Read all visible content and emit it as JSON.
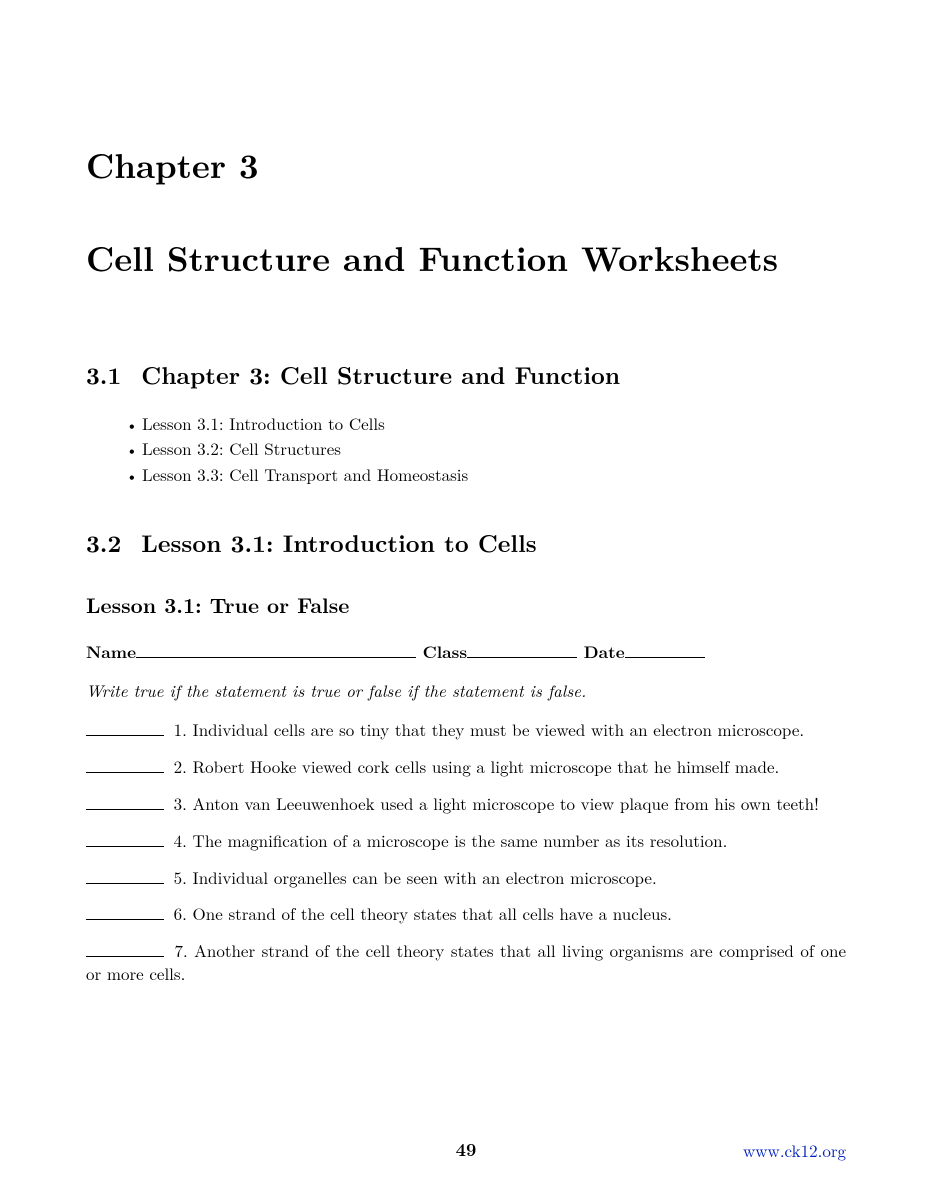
{
  "chapter": {
    "label": "Chapter 3",
    "title": "Cell Structure and Function Worksheets"
  },
  "section1": {
    "number": "3.1",
    "title": "Chapter 3: Cell Structure and Function",
    "lessons": [
      "Lesson 3.1: Introduction to Cells",
      "Lesson 3.2: Cell Structures",
      "Lesson 3.3: Cell Transport and Homeostasis"
    ]
  },
  "section2": {
    "number": "3.2",
    "title": "Lesson 3.1: Introduction to Cells"
  },
  "subsection": {
    "title": "Lesson 3.1: True or False"
  },
  "form": {
    "name_label": "Name",
    "class_label": "Class",
    "date_label": "Date"
  },
  "instructions": "Write true if the statement is true or false if the statement is false.",
  "questions": [
    "1. Individual cells are so tiny that they must be viewed with an electron microscope.",
    "2. Robert Hooke viewed cork cells using a light microscope that he himself made.",
    "3. Anton van Leeuwenhoek used a light microscope to view plaque from his own teeth!",
    "4. The magnification of a microscope is the same number as its resolution.",
    "5. Individual organelles can be seen with an electron microscope.",
    "6. One strand of the cell theory states that all cells have a nucleus.",
    "7. Another strand of the cell theory states that all living organisms are comprised of one or more cells."
  ],
  "footer": {
    "page_number": "49",
    "link": "www.ck12.org"
  },
  "styling": {
    "background_color": "#ffffff",
    "text_color": "#000000",
    "link_color": "#0020c0",
    "body_fontsize": 17,
    "chapter_fontsize": 34,
    "section_fontsize": 24,
    "subsection_fontsize": 21,
    "font_family": "Computer Modern / Latin Modern serif"
  }
}
